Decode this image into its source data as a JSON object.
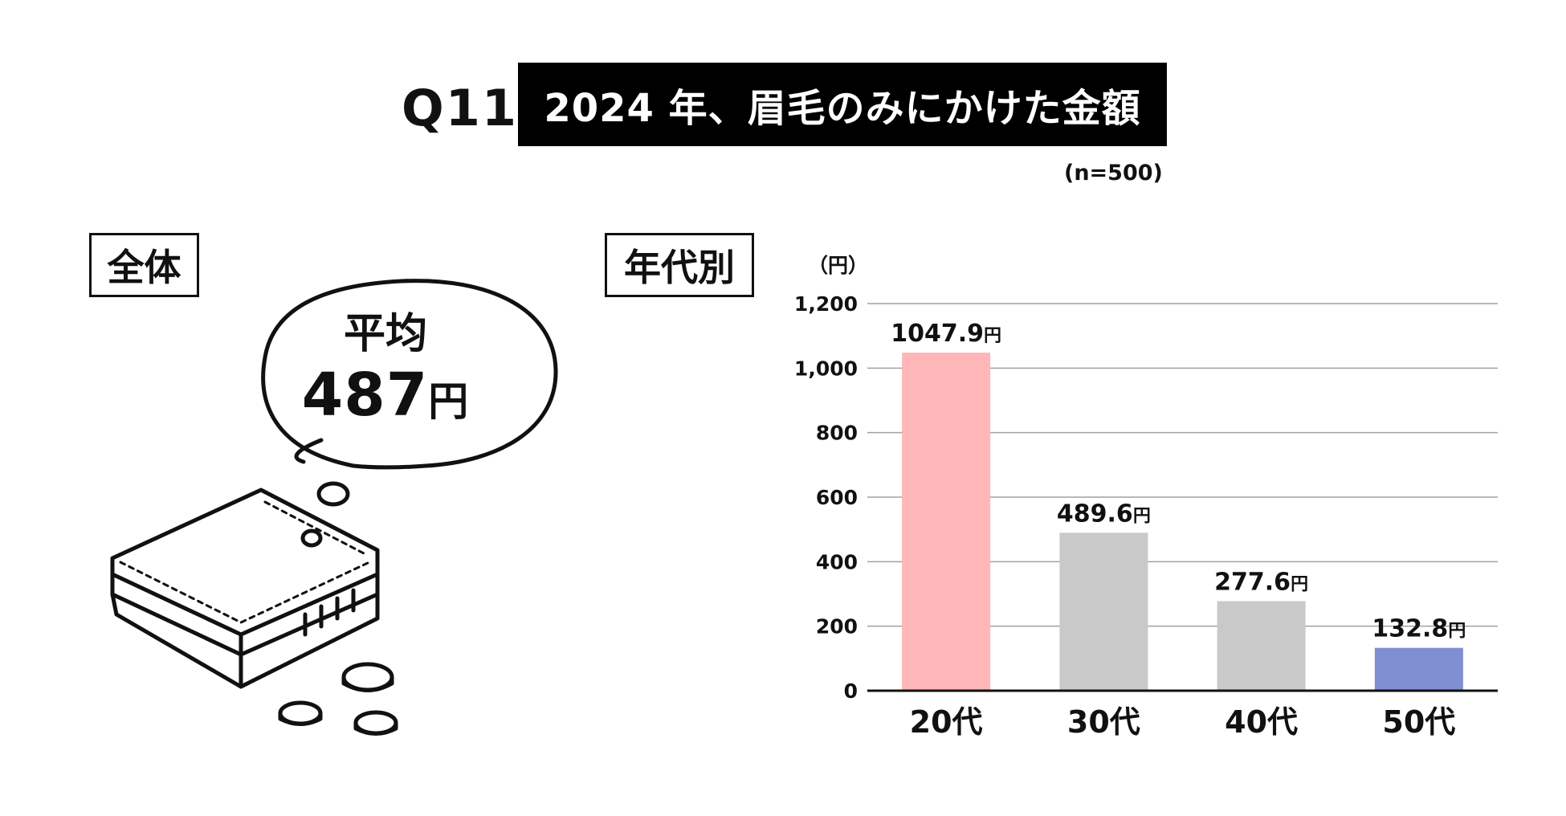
{
  "header": {
    "question_number": "Q11",
    "title": "2024 年、眉毛のみにかけた金額",
    "sample_size": "(n=500)"
  },
  "overall": {
    "label": "全体",
    "average_label": "平均",
    "average_value": "487",
    "average_unit": "円"
  },
  "by_age": {
    "label": "年代別"
  },
  "colors": {
    "bar_20s": "#ffb6b8",
    "bar_30s": "#c9c9c9",
    "bar_40s": "#c9c9c9",
    "bar_50s": "#7f8fd1",
    "grid": "#a0a0a0",
    "axis": "#111111"
  },
  "chart_data": {
    "type": "bar",
    "title": "年代別",
    "ylabel": "（円）",
    "xlabel": "",
    "ylim": [
      0,
      1200
    ],
    "y_ticks": [
      0,
      200,
      400,
      600,
      800,
      1000,
      1200
    ],
    "y_tick_labels": [
      "0",
      "200",
      "400",
      "600",
      "800",
      "1,000",
      "1,200"
    ],
    "categories": [
      "20代",
      "30代",
      "40代",
      "50代"
    ],
    "values": [
      1047.9,
      489.6,
      277.6,
      132.8
    ],
    "data_labels": [
      "1047.9",
      "489.6",
      "277.6",
      "132.8"
    ],
    "data_label_unit": "円",
    "grid": true
  }
}
